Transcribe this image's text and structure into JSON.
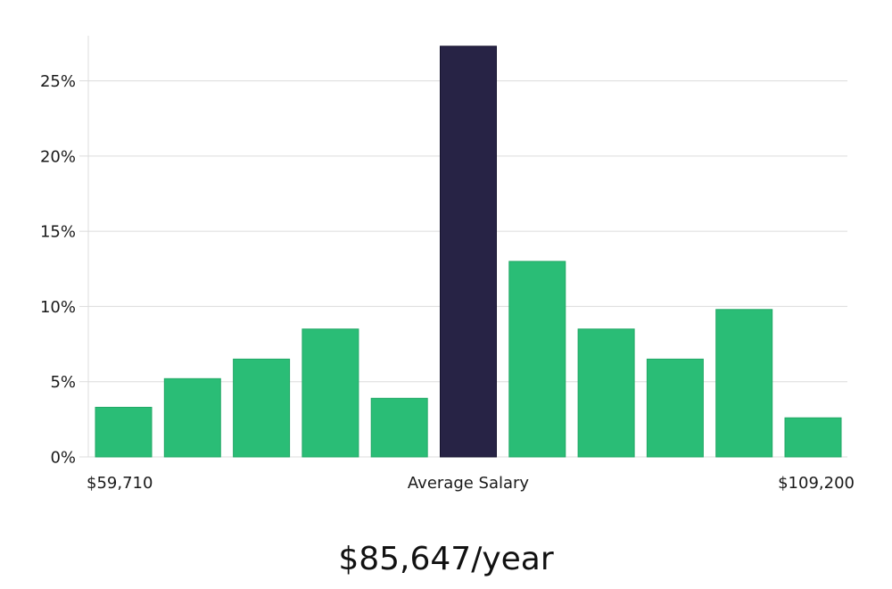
{
  "chart_data": {
    "type": "bar",
    "categories": [
      "1",
      "2",
      "3",
      "4",
      "5",
      "6",
      "7",
      "8",
      "9",
      "10",
      "11"
    ],
    "values": [
      3.3,
      5.2,
      6.5,
      8.5,
      3.9,
      27.3,
      13.0,
      8.5,
      6.5,
      9.8,
      2.6
    ],
    "highlight_index": 5,
    "ylim": [
      0,
      28
    ],
    "yticks": [
      0,
      5,
      10,
      15,
      20,
      25
    ],
    "ytick_labels": [
      "0%",
      "5%",
      "10%",
      "15%",
      "20%",
      "25%"
    ],
    "x_labels": {
      "left": "$59,710",
      "center": "Average Salary",
      "right": "$109,200"
    },
    "grid": true,
    "colors": {
      "bar": "#2abd76",
      "highlight": "#272345",
      "grid": "#dcdcdc"
    }
  },
  "caption": "$85,647/year"
}
